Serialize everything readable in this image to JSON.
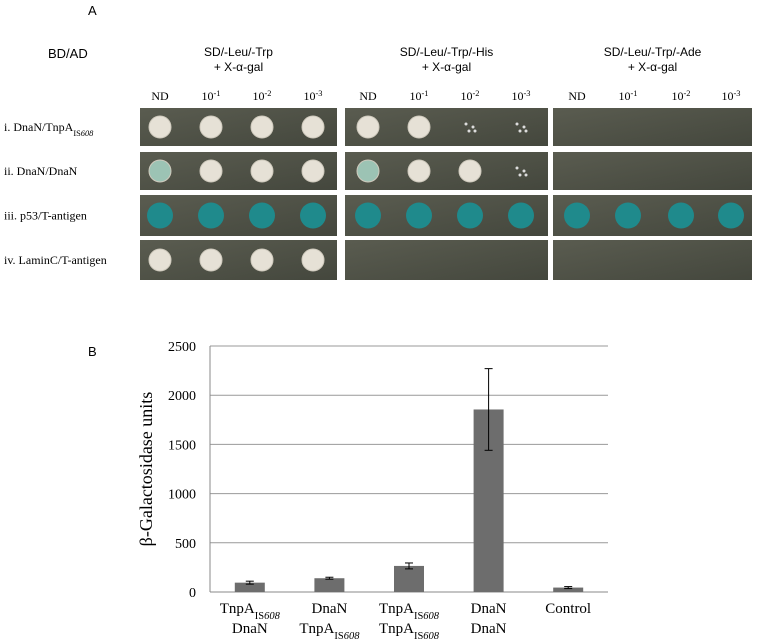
{
  "panel_a": {
    "label": "A",
    "corner_label": "BD/AD",
    "conditions": [
      {
        "lines": [
          "SD/-Leu/-Trp",
          "+ X-α-gal"
        ]
      },
      {
        "lines": [
          "SD/-Leu/-Trp/-His",
          "+ X-α-gal"
        ]
      },
      {
        "lines": [
          "SD/-Leu/-Trp/-Ade",
          "+ X-α-gal"
        ]
      }
    ],
    "dilutions": [
      {
        "text": "ND"
      },
      {
        "base": "10",
        "exp": "-1"
      },
      {
        "base": "10",
        "exp": "-2"
      },
      {
        "base": "10",
        "exp": "-3"
      }
    ],
    "rows": [
      {
        "text": "i. DnaN/TnpA",
        "sub": "IS",
        "sub_italic": "608"
      },
      {
        "text": "ii. DnaN/DnaN"
      },
      {
        "text": "iii. p53/T-antigen"
      },
      {
        "text": "iv. LaminC/T-antigen"
      }
    ]
  },
  "panel_b": {
    "label": "B"
  },
  "chart_data": {
    "type": "bar",
    "y_label": "β-Galactosidase units",
    "categories": [
      {
        "lines": [
          {
            "text": "TnpA",
            "sub": "IS",
            "sub_italic": "608"
          },
          {
            "text": "DnaN"
          }
        ]
      },
      {
        "lines": [
          {
            "text": "DnaN"
          },
          {
            "text": "TnpA",
            "sub": "IS",
            "sub_italic": "608"
          }
        ]
      },
      {
        "lines": [
          {
            "text": "TnpA",
            "sub": "IS",
            "sub_italic": "608"
          },
          {
            "text": "TnpA",
            "sub": "IS",
            "sub_italic": "608"
          }
        ]
      },
      {
        "lines": [
          {
            "text": "DnaN"
          },
          {
            "text": "DnaN"
          }
        ]
      },
      {
        "lines": [
          {
            "text": "Control"
          }
        ]
      }
    ],
    "values": [
      95,
      140,
      265,
      1855,
      45
    ],
    "errors": [
      15,
      10,
      30,
      415,
      10
    ],
    "color": "#6d6d6d",
    "ylim": [
      0,
      2500
    ],
    "yticks": [
      0,
      500,
      1000,
      1500,
      2000,
      2500
    ],
    "grid": true
  }
}
